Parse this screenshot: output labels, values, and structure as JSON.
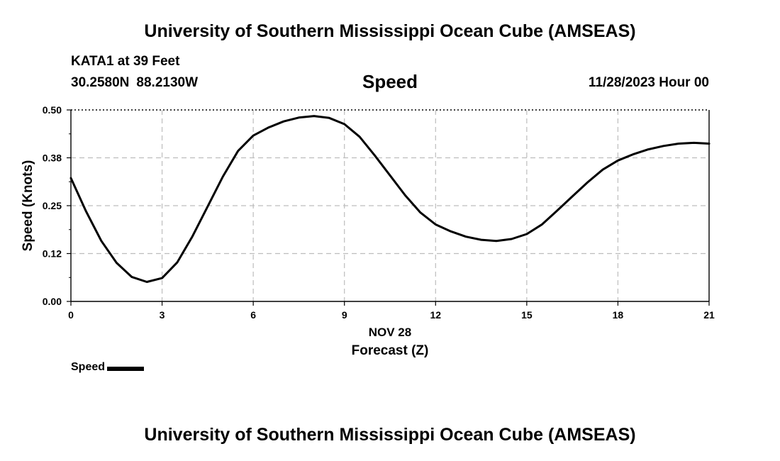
{
  "header": {
    "title": "University of Southern Mississippi Ocean Cube (AMSEAS)",
    "station": "KATA1 at 39 Feet",
    "latitude": "30.2580N",
    "longitude": "88.2130W",
    "datetime": "11/28/2023 Hour 00"
  },
  "footer": {
    "title": "University of Southern Mississippi Ocean Cube (AMSEAS)"
  },
  "legend": {
    "label": "Speed"
  },
  "chart_data": {
    "type": "line",
    "title": "Speed",
    "xlabel": "Forecast (Z)",
    "xlabel_date": "NOV 28",
    "ylabel": "Speed (Knots)",
    "xlim": [
      0,
      21
    ],
    "ylim": [
      0,
      0.5
    ],
    "x_ticks": [
      0,
      3,
      6,
      9,
      12,
      15,
      18,
      21
    ],
    "x_tick_labels": [
      "0",
      "3",
      "6",
      "9",
      "12",
      "15",
      "18",
      "21"
    ],
    "y_ticks": [
      0,
      0.125,
      0.25,
      0.375,
      0.5
    ],
    "y_tick_labels": [
      "0.00",
      "0.12",
      "0.25",
      "0.38",
      "0.50"
    ],
    "grid": true,
    "series": [
      {
        "name": "Speed",
        "color": "#000000",
        "x": [
          0,
          0.5,
          1,
          1.5,
          2,
          2.5,
          3,
          3.5,
          4,
          4.5,
          5,
          5.5,
          6,
          6.5,
          7,
          7.5,
          8,
          8.5,
          9,
          9.5,
          10,
          10.5,
          11,
          11.5,
          12,
          12.5,
          13,
          13.5,
          14,
          14.5,
          15,
          15.5,
          16,
          16.5,
          17,
          17.5,
          18,
          18.5,
          19,
          19.5,
          20,
          20.5,
          21
        ],
        "values": [
          0.322,
          0.235,
          0.158,
          0.101,
          0.064,
          0.051,
          0.061,
          0.102,
          0.17,
          0.248,
          0.326,
          0.393,
          0.433,
          0.454,
          0.47,
          0.48,
          0.484,
          0.479,
          0.463,
          0.43,
          0.381,
          0.329,
          0.277,
          0.232,
          0.201,
          0.183,
          0.169,
          0.161,
          0.158,
          0.163,
          0.176,
          0.201,
          0.237,
          0.274,
          0.311,
          0.344,
          0.368,
          0.384,
          0.397,
          0.406,
          0.412,
          0.414,
          0.412
        ]
      }
    ]
  }
}
